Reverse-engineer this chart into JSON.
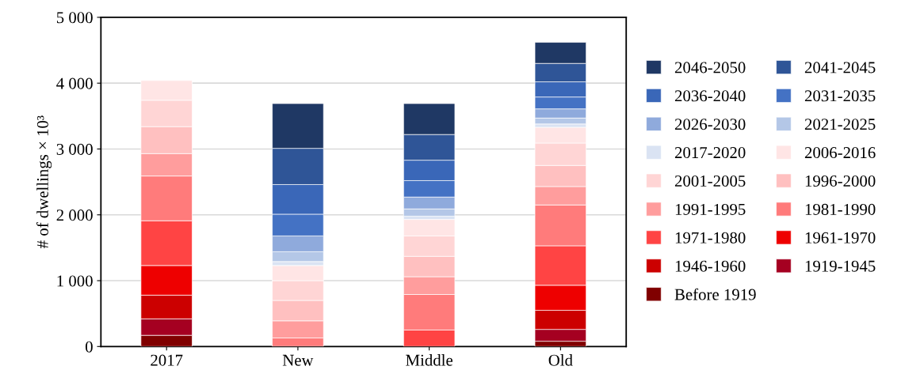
{
  "chart_data": {
    "type": "bar",
    "stacked": true,
    "ylabel": "# of dwellings × 10³",
    "categories": [
      "2017",
      "New",
      "Middle",
      "Old"
    ],
    "ylim": [
      0,
      5000
    ],
    "yticks": [
      0,
      {
        "value": 1000,
        "label": "1 000"
      },
      {
        "value": 2000,
        "label": "2 000"
      },
      {
        "value": 3000,
        "label": "3 000"
      },
      {
        "value": 4000,
        "label": "4 000"
      },
      {
        "value": 5000,
        "label": "5 000"
      }
    ],
    "grid": "y",
    "legend": "right",
    "series": [
      {
        "name": "Before 1919",
        "color": "#800000",
        "values": [
          170,
          0,
          0,
          80
        ]
      },
      {
        "name": "1919-1945",
        "color": "#a50021",
        "values": [
          250,
          0,
          0,
          180
        ]
      },
      {
        "name": "1946-1960",
        "color": "#cc0000",
        "values": [
          360,
          0,
          0,
          290
        ]
      },
      {
        "name": "1961-1970",
        "color": "#ee0000",
        "values": [
          450,
          0,
          0,
          380
        ]
      },
      {
        "name": "1971-1980",
        "color": "#ff4444",
        "values": [
          680,
          0,
          250,
          600
        ]
      },
      {
        "name": "1981-1990",
        "color": "#ff7b7b",
        "values": [
          680,
          130,
          540,
          620
        ]
      },
      {
        "name": "1991-1995",
        "color": "#ff9d9d",
        "values": [
          340,
          260,
          270,
          280
        ]
      },
      {
        "name": "1996-2000",
        "color": "#ffc0c0",
        "values": [
          410,
          310,
          310,
          320
        ]
      },
      {
        "name": "2001-2005",
        "color": "#ffd5d5",
        "values": [
          400,
          300,
          310,
          340
        ]
      },
      {
        "name": "2006-2016",
        "color": "#ffe5e5",
        "values": [
          300,
          230,
          250,
          240
        ]
      },
      {
        "name": "2017-2020",
        "color": "#dae3f3",
        "values": [
          0,
          60,
          50,
          50
        ]
      },
      {
        "name": "2021-2025",
        "color": "#b4c7e7",
        "values": [
          0,
          150,
          110,
          90
        ]
      },
      {
        "name": "2026-2030",
        "color": "#8faadc",
        "values": [
          0,
          240,
          180,
          140
        ]
      },
      {
        "name": "2031-2035",
        "color": "#4472c4",
        "values": [
          0,
          330,
          250,
          180
        ]
      },
      {
        "name": "2036-2040",
        "color": "#3a67b8",
        "values": [
          0,
          450,
          310,
          230
        ]
      },
      {
        "name": "2041-2045",
        "color": "#2f5597",
        "values": [
          0,
          550,
          390,
          280
        ]
      },
      {
        "name": "2046-2050",
        "color": "#1f3864",
        "values": [
          0,
          680,
          470,
          320
        ]
      }
    ]
  }
}
